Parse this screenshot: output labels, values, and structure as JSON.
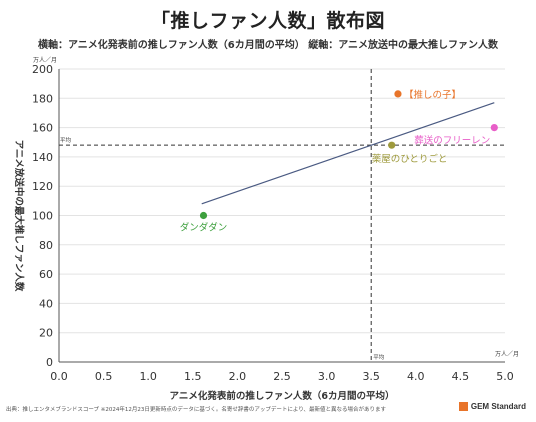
{
  "title": "「推しファン人数」散布図",
  "subtitle": "横軸：アニメ化発表前の推しファン人数（6カ月間の平均） 縦軸：アニメ放送中の最大推しファン人数",
  "footer": {
    "source": "出典：推しエンタメブランドスコープ ※2024年12月23日更新時点のデータに基づく。名寄せ辞書のアップデートにより、最新値と異なる場合があります",
    "logo": "GEM Standard"
  },
  "chart_data": {
    "type": "scatter",
    "xlabel": "アニメ化発表前の推しファン人数（6カ月間の平均）",
    "ylabel": "アニメ放送中の最大推しファン人数",
    "x_unit": "万人／月",
    "y_unit": "万人／月",
    "xlim": [
      0,
      5
    ],
    "ylim": [
      0,
      200
    ],
    "x_ticks": [
      "0.0",
      "0.5",
      "1.0",
      "1.5",
      "2.0",
      "2.5",
      "3.0",
      "3.5",
      "4.0",
      "4.5",
      "5.0"
    ],
    "y_ticks": [
      "0",
      "20",
      "40",
      "60",
      "80",
      "100",
      "120",
      "140",
      "160",
      "180",
      "200"
    ],
    "grid": "horizontal",
    "points": [
      {
        "label": "ダンダダン",
        "x": 1.62,
        "y": 100,
        "color": "#3ea03e"
      },
      {
        "label": "【推しの子】",
        "x": 3.8,
        "y": 183,
        "color": "#e8742a"
      },
      {
        "label": "薬屋のひとりごと",
        "x": 3.73,
        "y": 148,
        "color": "#9e9a3c"
      },
      {
        "label": "葬送のフリーレン",
        "x": 4.88,
        "y": 160,
        "color": "#e85ec8"
      }
    ],
    "trendline": {
      "x": [
        1.6,
        4.88
      ],
      "y": [
        108,
        177
      ],
      "color": "#4a5a82"
    },
    "averages": {
      "x": 3.5,
      "y": 148,
      "x_label": "平均",
      "y_label": "平均"
    }
  }
}
